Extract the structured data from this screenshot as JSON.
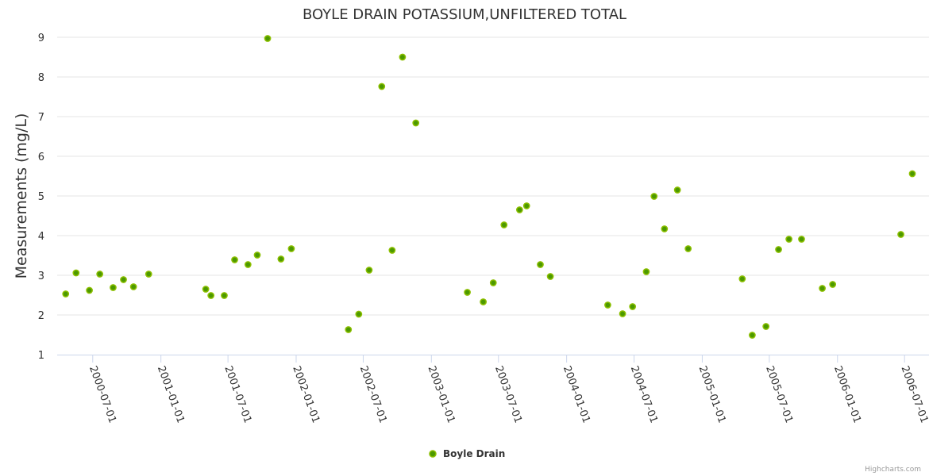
{
  "chart_data": {
    "type": "scatter",
    "title": "BOYLE DRAIN POTASSIUM,UNFILTERED TOTAL",
    "xlabel": "",
    "ylabel": "Measurements (mg/L)",
    "ylim": [
      1,
      9
    ],
    "yticks": [
      1,
      2,
      3,
      4,
      5,
      6,
      7,
      8,
      9
    ],
    "xlim": [
      "2000-03-27",
      "2006-09-05"
    ],
    "xticks": [
      "2000-07-01",
      "2001-01-01",
      "2001-07-01",
      "2002-01-01",
      "2002-07-01",
      "2003-01-01",
      "2003-07-01",
      "2004-01-01",
      "2004-07-01",
      "2005-01-01",
      "2005-07-01",
      "2006-01-01",
      "2006-07-01"
    ],
    "grid": true,
    "legend_position": "bottom-center",
    "series": [
      {
        "name": "Boyle Drain",
        "color": "#5a9e00",
        "points": [
          [
            "2000-04-19",
            2.53
          ],
          [
            "2000-05-17",
            3.06
          ],
          [
            "2000-06-22",
            2.62
          ],
          [
            "2000-07-20",
            3.03
          ],
          [
            "2000-08-25",
            2.69
          ],
          [
            "2000-09-22",
            2.89
          ],
          [
            "2000-10-19",
            2.71
          ],
          [
            "2000-11-29",
            3.03
          ],
          [
            "2001-05-02",
            2.65
          ],
          [
            "2001-05-16",
            2.49
          ],
          [
            "2001-06-21",
            2.49
          ],
          [
            "2001-07-19",
            3.39
          ],
          [
            "2001-08-24",
            3.27
          ],
          [
            "2001-09-18",
            3.51
          ],
          [
            "2001-10-16",
            8.97
          ],
          [
            "2001-11-21",
            3.41
          ],
          [
            "2001-12-19",
            3.67
          ],
          [
            "2002-05-22",
            1.63
          ],
          [
            "2002-06-19",
            2.02
          ],
          [
            "2002-07-17",
            3.13
          ],
          [
            "2002-08-20",
            7.76
          ],
          [
            "2002-09-17",
            3.63
          ],
          [
            "2002-10-15",
            8.5
          ],
          [
            "2002-11-20",
            6.84
          ],
          [
            "2003-04-08",
            2.57
          ],
          [
            "2003-05-21",
            2.33
          ],
          [
            "2003-06-17",
            2.81
          ],
          [
            "2003-07-16",
            4.27
          ],
          [
            "2003-08-27",
            4.65
          ],
          [
            "2003-09-15",
            4.75
          ],
          [
            "2003-10-22",
            3.27
          ],
          [
            "2003-11-18",
            2.97
          ],
          [
            "2004-04-21",
            2.25
          ],
          [
            "2004-05-31",
            2.03
          ],
          [
            "2004-06-27",
            2.21
          ],
          [
            "2004-08-03",
            3.09
          ],
          [
            "2004-08-24",
            4.99
          ],
          [
            "2004-09-21",
            4.17
          ],
          [
            "2004-10-26",
            5.15
          ],
          [
            "2004-11-24",
            3.67
          ],
          [
            "2005-04-19",
            2.91
          ],
          [
            "2005-05-16",
            1.49
          ],
          [
            "2005-06-22",
            1.71
          ],
          [
            "2005-07-26",
            3.65
          ],
          [
            "2005-08-23",
            3.91
          ],
          [
            "2005-09-26",
            3.91
          ],
          [
            "2005-11-21",
            2.67
          ],
          [
            "2005-12-19",
            2.77
          ],
          [
            "2006-06-21",
            4.03
          ],
          [
            "2006-07-22",
            5.56
          ]
        ]
      }
    ]
  },
  "credits": "Highcharts.com"
}
